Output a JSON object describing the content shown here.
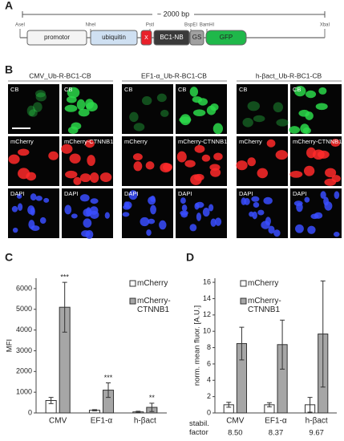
{
  "panel_a": {
    "label": "A",
    "scale": "~ 2000 bp",
    "sites": [
      "AseI",
      "NheI",
      "PstI",
      "BspEI",
      "BamHI",
      "XbaI"
    ],
    "elements": [
      "promotor",
      "ubiquitin",
      "X",
      "BC1-NB",
      "GS",
      "GFP"
    ]
  },
  "panel_b": {
    "label": "B",
    "groups": [
      "CMV_Ub-R-BC1-CB",
      "EF1-α_Ub-R-BC1-CB",
      "h-βact_Ub-R-BC1-CB"
    ],
    "tile_labels": [
      [
        "CB",
        "CB"
      ],
      [
        "mCherry",
        "mCherry-CTNNB1"
      ],
      [
        "DAPI",
        "DAPI"
      ]
    ]
  },
  "chart_data": [
    {
      "type": "bar",
      "panel_label": "C",
      "y_label": "MFI",
      "categories": [
        "CMV",
        "EF1-α",
        "h-βact"
      ],
      "series": [
        {
          "name": "mCherry",
          "color": "#ffffff",
          "values": [
            600,
            130,
            50
          ],
          "errors": [
            150,
            30,
            30
          ]
        },
        {
          "name": "mCherry-CTNNB1",
          "color": "#a6a6a6",
          "values": [
            5100,
            1100,
            270
          ],
          "errors": [
            1200,
            350,
            200
          ]
        }
      ],
      "annotations": [
        "***",
        "***",
        "**"
      ],
      "ylim": [
        0,
        6500
      ],
      "yticks": [
        0,
        1000,
        2000,
        3000,
        4000,
        5000,
        6000
      ]
    },
    {
      "type": "bar",
      "panel_label": "D",
      "y_label": "norm. mean fluor. [A.U.]",
      "categories": [
        "CMV",
        "EF1-α",
        "h-βact"
      ],
      "series": [
        {
          "name": "mCherry",
          "color": "#ffffff",
          "values": [
            1,
            1,
            1
          ],
          "errors": [
            0.3,
            0.25,
            0.9
          ]
        },
        {
          "name": "mCherry-CTNNB1",
          "color": "#a6a6a6",
          "values": [
            8.5,
            8.37,
            9.67
          ],
          "errors": [
            2,
            3,
            6.5
          ]
        }
      ],
      "stabil_factor_label": "stabil. factor",
      "stabil_factor": [
        "8.50",
        "8.37",
        "9.67"
      ],
      "ylim": [
        0,
        16.5
      ],
      "yticks": [
        0,
        2,
        4,
        6,
        8,
        10,
        12,
        14,
        16
      ]
    }
  ]
}
